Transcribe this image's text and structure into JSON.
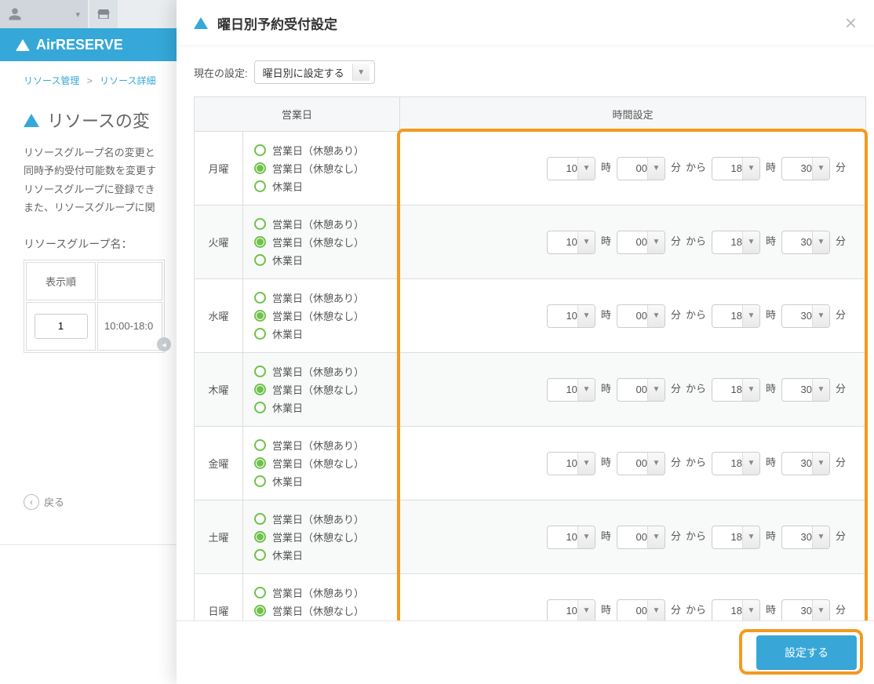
{
  "brand": "AirRESERVE",
  "breadcrumbs": {
    "a": "リソース管理",
    "b": "リソース詳細"
  },
  "page_title": "リソースの変",
  "page_desc": [
    "リソースグループ名の変更と",
    "同時予約受付可能数を変更す",
    "リソースグループに登録でき",
    "また、リソースグループに関"
  ],
  "group_label": "リソースグループ名：",
  "mini_table": {
    "header": "表示順",
    "order_value": "1",
    "time_text": "10:00-18:0"
  },
  "back_label": "戻る",
  "modal": {
    "title": "曜日別予約受付設定",
    "current_setting_label": "現在の設定:",
    "current_setting_value": "曜日別に設定する",
    "table_header_day": "営業日",
    "table_header_time": "時間設定",
    "radio_options": {
      "with_break": "営業日（休憩あり）",
      "no_break": "営業日（休憩なし）",
      "closed": "休業日"
    },
    "units": {
      "hour": "時",
      "minute": "分",
      "from": "から"
    },
    "days": [
      {
        "label": "月曜",
        "selected": "no_break",
        "start_h": "10",
        "start_m": "00",
        "end_h": "18",
        "end_m": "30",
        "alt": false
      },
      {
        "label": "火曜",
        "selected": "no_break",
        "start_h": "10",
        "start_m": "00",
        "end_h": "18",
        "end_m": "30",
        "alt": true
      },
      {
        "label": "水曜",
        "selected": "no_break",
        "start_h": "10",
        "start_m": "00",
        "end_h": "18",
        "end_m": "30",
        "alt": false
      },
      {
        "label": "木曜",
        "selected": "no_break",
        "start_h": "10",
        "start_m": "00",
        "end_h": "18",
        "end_m": "30",
        "alt": true
      },
      {
        "label": "金曜",
        "selected": "no_break",
        "start_h": "10",
        "start_m": "00",
        "end_h": "18",
        "end_m": "30",
        "alt": false
      },
      {
        "label": "土曜",
        "selected": "no_break",
        "start_h": "10",
        "start_m": "00",
        "end_h": "18",
        "end_m": "30",
        "alt": true
      },
      {
        "label": "日曜",
        "selected": "no_break",
        "start_h": "10",
        "start_m": "00",
        "end_h": "18",
        "end_m": "30",
        "alt": false
      }
    ],
    "submit_label": "設定する"
  },
  "colors": {
    "accent": "#35a8d9",
    "radio_green": "#6fc24a",
    "highlight_orange": "#f39a1f"
  }
}
